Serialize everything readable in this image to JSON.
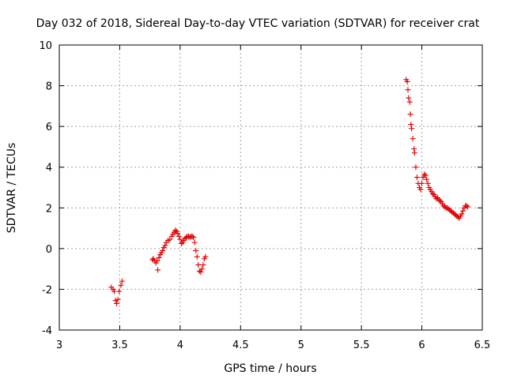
{
  "chart_data": {
    "type": "scatter",
    "title": "Day 032 of 2018, Sidereal Day-to-day VTEC variation (SDTVAR) for receiver crat",
    "xlabel": "GPS time / hours",
    "ylabel": "SDTVAR / TECUs",
    "xlim": [
      3,
      6.5
    ],
    "ylim": [
      -4,
      10
    ],
    "xticks": [
      "3",
      "3.5",
      "4",
      "4.5",
      "5",
      "5.5",
      "6",
      "6.5"
    ],
    "yticks": [
      "-4",
      "-2",
      "0",
      "2",
      "4",
      "6",
      "8",
      "10"
    ],
    "grid": true,
    "marker": "+",
    "marker_color": "#e00000",
    "series": [
      {
        "name": "SDTVAR",
        "points": [
          [
            3.43,
            -1.9
          ],
          [
            3.445,
            -2.0
          ],
          [
            3.455,
            -2.1
          ],
          [
            3.465,
            -2.55
          ],
          [
            3.475,
            -2.7
          ],
          [
            3.485,
            -2.5
          ],
          [
            3.495,
            -2.1
          ],
          [
            3.51,
            -1.8
          ],
          [
            3.52,
            -1.6
          ],
          [
            3.77,
            -0.55
          ],
          [
            3.78,
            -0.5
          ],
          [
            3.79,
            -0.6
          ],
          [
            3.8,
            -0.7
          ],
          [
            3.81,
            -0.6
          ],
          [
            3.815,
            -1.05
          ],
          [
            3.825,
            -0.45
          ],
          [
            3.835,
            -0.3
          ],
          [
            3.845,
            -0.2
          ],
          [
            3.855,
            -0.1
          ],
          [
            3.865,
            0.05
          ],
          [
            3.875,
            0.15
          ],
          [
            3.885,
            0.3
          ],
          [
            3.9,
            0.4
          ],
          [
            3.915,
            0.45
          ],
          [
            3.93,
            0.6
          ],
          [
            3.94,
            0.7
          ],
          [
            3.95,
            0.8
          ],
          [
            3.96,
            0.9
          ],
          [
            3.97,
            0.85
          ],
          [
            3.98,
            0.75
          ],
          [
            3.99,
            0.6
          ],
          [
            4.0,
            0.45
          ],
          [
            4.01,
            0.25
          ],
          [
            4.02,
            0.3
          ],
          [
            4.03,
            0.4
          ],
          [
            4.04,
            0.5
          ],
          [
            4.05,
            0.55
          ],
          [
            4.06,
            0.6
          ],
          [
            4.07,
            0.6
          ],
          [
            4.08,
            0.55
          ],
          [
            4.09,
            0.6
          ],
          [
            4.1,
            0.6
          ],
          [
            4.11,
            0.55
          ],
          [
            4.12,
            0.3
          ],
          [
            4.13,
            -0.1
          ],
          [
            4.14,
            -0.4
          ],
          [
            4.15,
            -0.8
          ],
          [
            4.16,
            -1.1
          ],
          [
            4.17,
            -1.15
          ],
          [
            4.18,
            -1.0
          ],
          [
            4.19,
            -0.8
          ],
          [
            4.2,
            -0.5
          ],
          [
            4.21,
            -0.4
          ],
          [
            5.87,
            8.3
          ],
          [
            5.88,
            8.2
          ],
          [
            5.885,
            7.8
          ],
          [
            5.89,
            7.4
          ],
          [
            5.9,
            7.2
          ],
          [
            5.905,
            6.6
          ],
          [
            5.91,
            6.1
          ],
          [
            5.915,
            5.9
          ],
          [
            5.925,
            5.4
          ],
          [
            5.935,
            4.9
          ],
          [
            5.94,
            4.7
          ],
          [
            5.95,
            4.0
          ],
          [
            5.96,
            3.5
          ],
          [
            5.97,
            3.2
          ],
          [
            5.98,
            3.0
          ],
          [
            5.99,
            2.9
          ],
          [
            6.0,
            3.2
          ],
          [
            6.01,
            3.5
          ],
          [
            6.02,
            3.65
          ],
          [
            6.03,
            3.6
          ],
          [
            6.04,
            3.4
          ],
          [
            6.05,
            3.2
          ],
          [
            6.06,
            3.0
          ],
          [
            6.07,
            2.9
          ],
          [
            6.08,
            2.8
          ],
          [
            6.09,
            2.7
          ],
          [
            6.1,
            2.65
          ],
          [
            6.11,
            2.55
          ],
          [
            6.12,
            2.45
          ],
          [
            6.13,
            2.5
          ],
          [
            6.14,
            2.4
          ],
          [
            6.15,
            2.35
          ],
          [
            6.16,
            2.3
          ],
          [
            6.17,
            2.2
          ],
          [
            6.18,
            2.1
          ],
          [
            6.19,
            2.05
          ],
          [
            6.2,
            2.0
          ],
          [
            6.21,
            2.0
          ],
          [
            6.22,
            1.95
          ],
          [
            6.23,
            1.9
          ],
          [
            6.24,
            1.85
          ],
          [
            6.25,
            1.8
          ],
          [
            6.26,
            1.75
          ],
          [
            6.27,
            1.7
          ],
          [
            6.28,
            1.65
          ],
          [
            6.29,
            1.6
          ],
          [
            6.3,
            1.55
          ],
          [
            6.31,
            1.5
          ],
          [
            6.32,
            1.6
          ],
          [
            6.33,
            1.7
          ],
          [
            6.34,
            1.85
          ],
          [
            6.35,
            2.0
          ],
          [
            6.36,
            2.1
          ],
          [
            6.37,
            2.1
          ],
          [
            6.38,
            2.05
          ]
        ]
      }
    ]
  }
}
